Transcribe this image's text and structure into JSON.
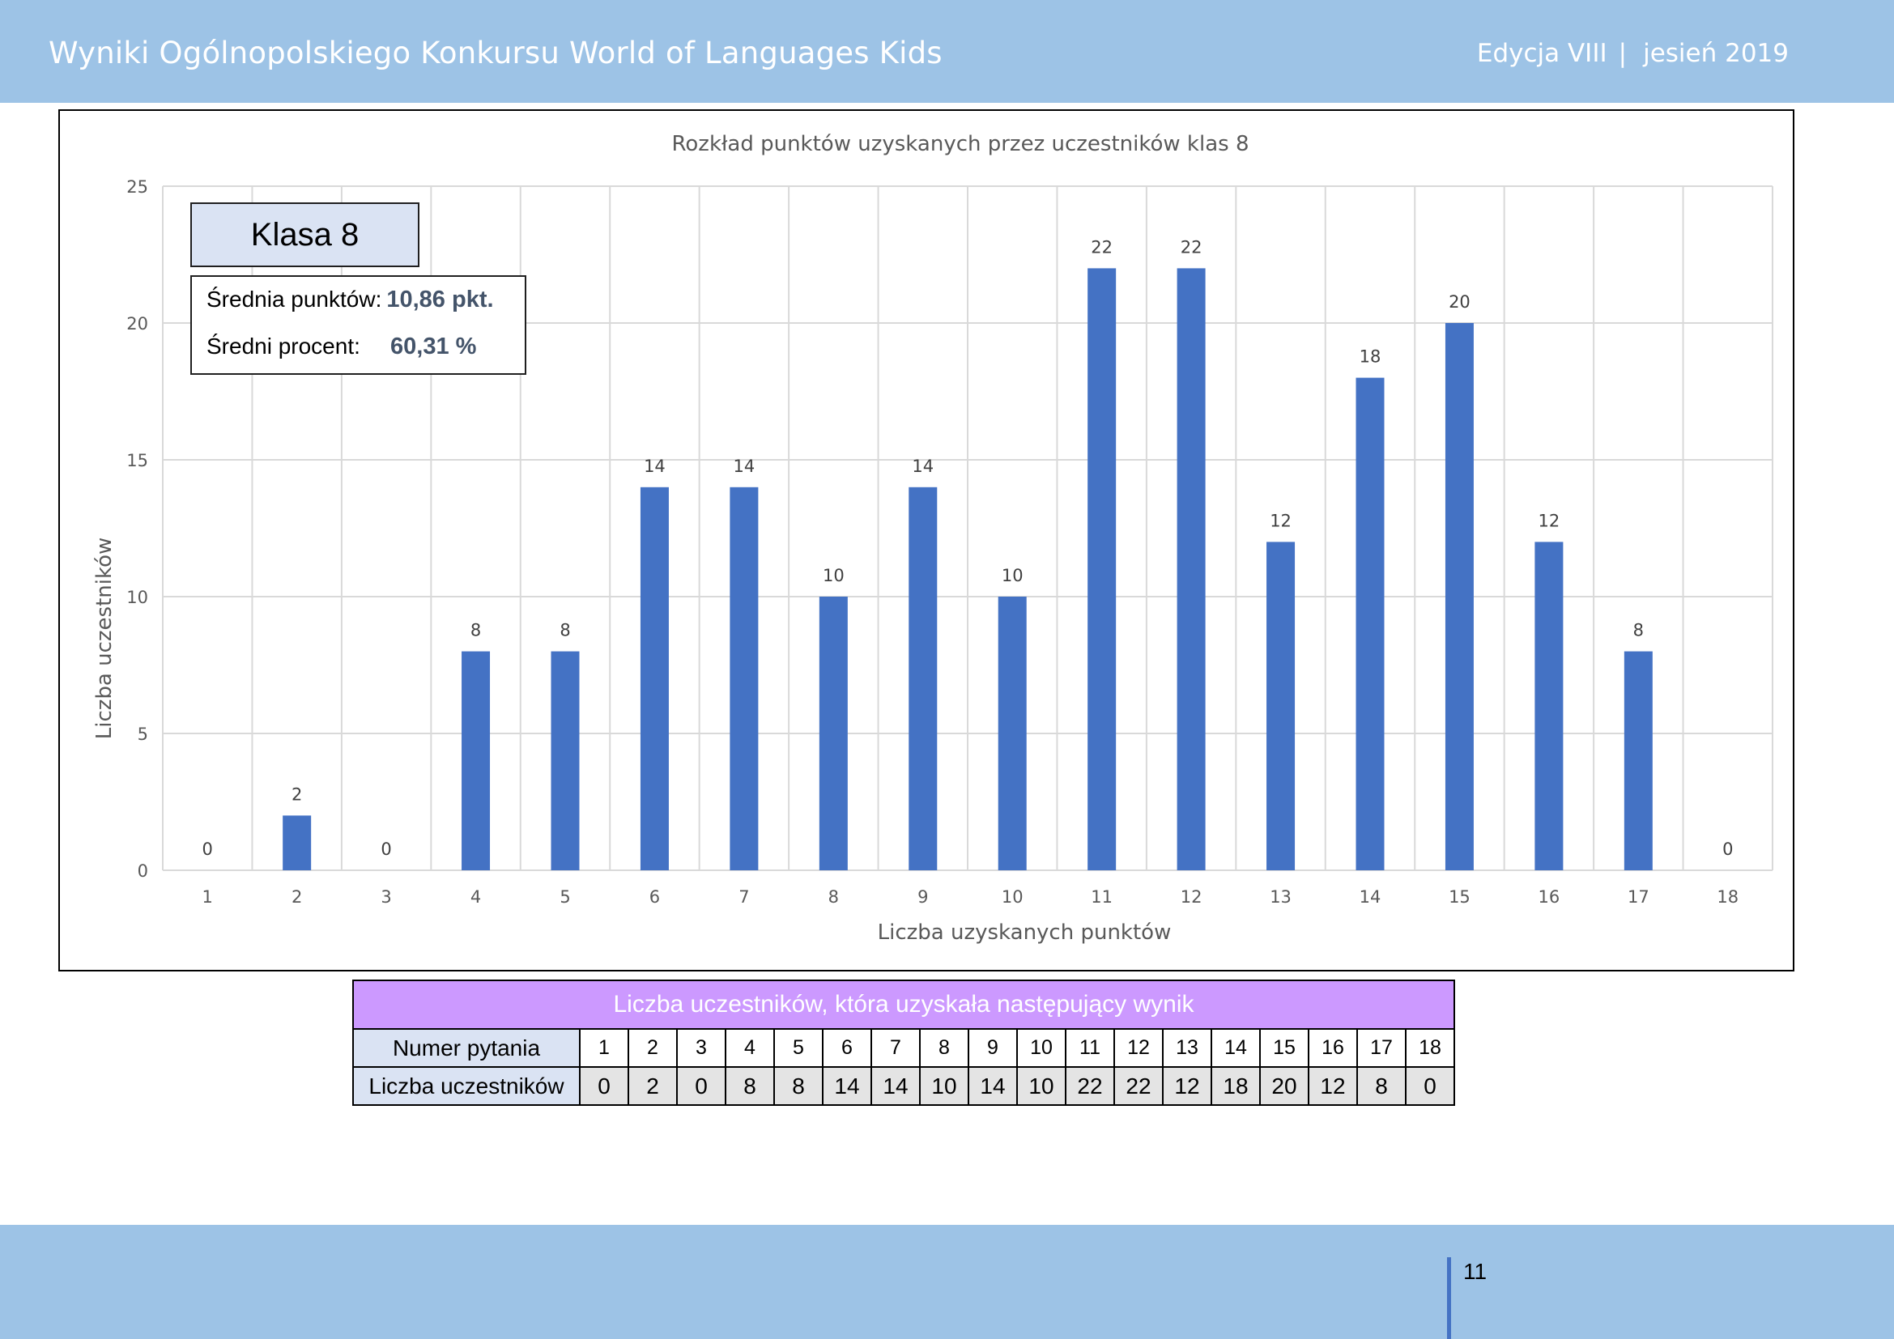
{
  "header": {
    "title": "Wyniki Ogólnopolskiego Konkursu World of Languages Kids",
    "edition": "Edycja VIII",
    "separator": "|",
    "season": "jesień 2019"
  },
  "overlay": {
    "class_label": "Klasa 8",
    "avg_points_label": "Średnia punktów:",
    "avg_points_value": "10,86 pkt.",
    "avg_percent_label": "Średni procent:",
    "avg_percent_value": "60,31 %"
  },
  "chart_data": {
    "type": "bar",
    "title": "Rozkład punktów uzyskanych przez uczestników klas 8",
    "xlabel": "Liczba uzyskanych punktów",
    "ylabel": "Liczba uczestników",
    "categories": [
      "1",
      "2",
      "3",
      "4",
      "5",
      "6",
      "7",
      "8",
      "9",
      "10",
      "11",
      "12",
      "13",
      "14",
      "15",
      "16",
      "17",
      "18"
    ],
    "values": [
      0,
      2,
      0,
      8,
      8,
      14,
      14,
      10,
      14,
      10,
      22,
      22,
      12,
      18,
      20,
      12,
      8,
      0
    ],
    "ylim": [
      0,
      25
    ],
    "yticks": [
      0,
      5,
      10,
      15,
      20,
      25
    ],
    "grid": true,
    "data_labels": true,
    "bar_color": "#4472c4",
    "grid_color": "#d9d9d9"
  },
  "table": {
    "header": "Liczba uczestników, która uzyskała następujący wynik",
    "row1_label": "Numer pytania",
    "row2_label": "Liczba uczestników",
    "columns": [
      "1",
      "2",
      "3",
      "4",
      "5",
      "6",
      "7",
      "8",
      "9",
      "10",
      "11",
      "12",
      "13",
      "14",
      "15",
      "16",
      "17",
      "18"
    ],
    "values": [
      "0",
      "2",
      "0",
      "8",
      "8",
      "14",
      "14",
      "10",
      "14",
      "10",
      "22",
      "22",
      "12",
      "18",
      "20",
      "12",
      "8",
      "0"
    ]
  },
  "footer": {
    "page_number": "11"
  },
  "colors": {
    "header_bg": "#9dc3e6",
    "table_header_bg": "#cc99ff",
    "label_bg": "#dae3f3",
    "value_bg": "#e4e4e4"
  }
}
